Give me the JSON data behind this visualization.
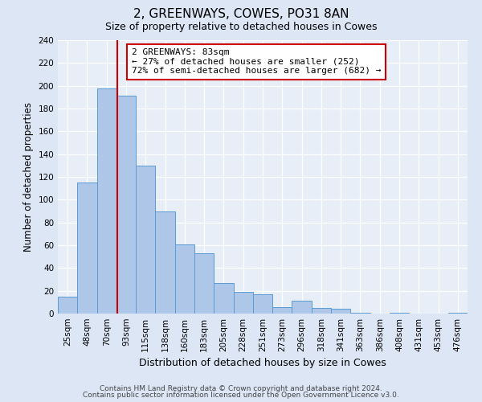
{
  "title": "2, GREENWAYS, COWES, PO31 8AN",
  "subtitle": "Size of property relative to detached houses in Cowes",
  "xlabel": "Distribution of detached houses by size in Cowes",
  "ylabel": "Number of detached properties",
  "bin_labels": [
    "25sqm",
    "48sqm",
    "70sqm",
    "93sqm",
    "115sqm",
    "138sqm",
    "160sqm",
    "183sqm",
    "205sqm",
    "228sqm",
    "251sqm",
    "273sqm",
    "296sqm",
    "318sqm",
    "341sqm",
    "363sqm",
    "386sqm",
    "408sqm",
    "431sqm",
    "453sqm",
    "476sqm"
  ],
  "bar_heights": [
    15,
    115,
    198,
    191,
    130,
    90,
    61,
    53,
    27,
    19,
    17,
    6,
    11,
    5,
    4,
    1,
    0,
    1,
    0,
    0,
    1
  ],
  "bar_color": "#aec6e8",
  "bar_edgecolor": "#5b9bd5",
  "vline_color": "#cc0000",
  "annotation_text": "2 GREENWAYS: 83sqm\n← 27% of detached houses are smaller (252)\n72% of semi-detached houses are larger (682) →",
  "annotation_box_edgecolor": "#cc0000",
  "annotation_box_facecolor": "#ffffff",
  "ylim": [
    0,
    240
  ],
  "yticks": [
    0,
    20,
    40,
    60,
    80,
    100,
    120,
    140,
    160,
    180,
    200,
    220,
    240
  ],
  "footer_line1": "Contains HM Land Registry data © Crown copyright and database right 2024.",
  "footer_line2": "Contains public sector information licensed under the Open Government Licence v3.0.",
  "bg_color": "#dce6f5",
  "plot_bg_color": "#e8eef8"
}
